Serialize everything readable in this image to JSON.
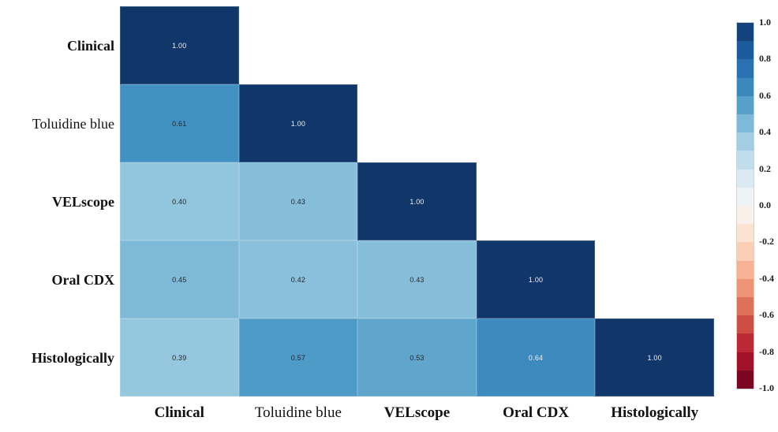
{
  "figure": {
    "background": "#ffffff"
  },
  "chart_data": {
    "type": "heatmap",
    "subtype": "correlation-matrix-lower-triangle",
    "title": "",
    "xlabel": "",
    "ylabel": "",
    "categories": [
      "Clinical",
      "Toluidine blue",
      "VELscope",
      "Oral CDX",
      "Histologically"
    ],
    "matrix": [
      [
        1.0
      ],
      [
        0.61,
        1.0
      ],
      [
        0.4,
        0.43,
        1.0
      ],
      [
        0.45,
        0.42,
        0.43,
        1.0
      ],
      [
        0.39,
        0.57,
        0.53,
        0.64,
        1.0
      ]
    ],
    "value_decimals": 2,
    "vmin": -1.0,
    "vmax": 1.0,
    "grid": "off",
    "legend_position": "right",
    "colorbar_ticks": [
      "1.0",
      "0.8",
      "0.6",
      "0.4",
      "0.2",
      "0.0",
      "-0.2",
      "-0.4",
      "-0.6",
      "-0.8",
      "-1.0"
    ],
    "colorbar_steps": 20,
    "colormap_anchors": [
      {
        "v": -1.0,
        "color": "#67001f"
      },
      {
        "v": -0.8,
        "color": "#b2182b"
      },
      {
        "v": -0.6,
        "color": "#d6604d"
      },
      {
        "v": -0.4,
        "color": "#f4a582"
      },
      {
        "v": -0.2,
        "color": "#fddbc7"
      },
      {
        "v": 0.0,
        "color": "#f7f7f7"
      },
      {
        "v": 0.2,
        "color": "#d1e5f0"
      },
      {
        "v": 0.4,
        "color": "#92c5de"
      },
      {
        "v": 0.6,
        "color": "#4393c3"
      },
      {
        "v": 0.8,
        "color": "#2166ac"
      },
      {
        "v": 1.0,
        "color": "#10366a"
      }
    ],
    "label_bold": [
      true,
      false,
      true,
      true,
      true
    ],
    "annotation": {
      "white_text_min": 0.62,
      "light_color": "#f0f0f0",
      "dark_color": "#262626"
    }
  }
}
